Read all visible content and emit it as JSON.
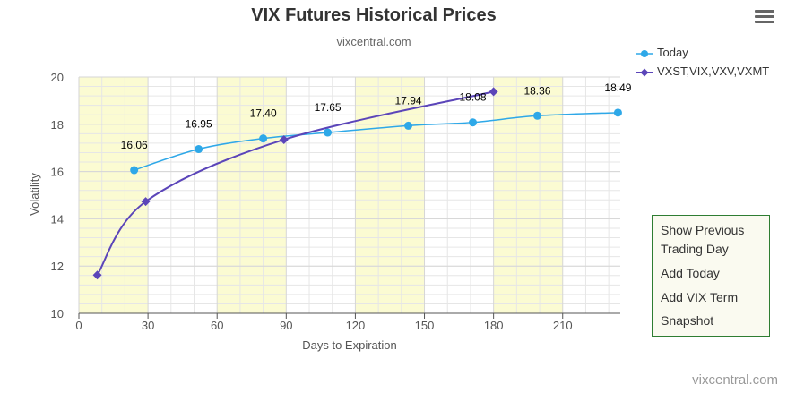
{
  "chart_data": {
    "type": "line",
    "title": "VIX Futures Historical Prices",
    "subtitle": "vixcentral.com",
    "xlabel": "Days to Expiration",
    "ylabel": "Volatility",
    "xlim": [
      0,
      235
    ],
    "ylim": [
      10,
      20
    ],
    "x_ticks": [
      0,
      30,
      60,
      90,
      120,
      150,
      180,
      210
    ],
    "y_ticks": [
      10,
      12,
      14,
      16,
      18,
      20
    ],
    "grid": true,
    "legend_position": "top-right",
    "bands": [
      [
        0,
        30
      ],
      [
        60,
        90
      ],
      [
        120,
        150
      ],
      [
        180,
        210
      ]
    ],
    "series": [
      {
        "name": "Today",
        "color": "#2ea8e8",
        "marker": "circle",
        "points": [
          {
            "x": 24,
            "y": 16.06,
            "label": "16.06"
          },
          {
            "x": 52,
            "y": 16.95,
            "label": "16.95"
          },
          {
            "x": 80,
            "y": 17.4,
            "label": "17.40"
          },
          {
            "x": 108,
            "y": 17.65,
            "label": "17.65"
          },
          {
            "x": 143,
            "y": 17.94,
            "label": "17.94"
          },
          {
            "x": 171,
            "y": 18.08,
            "label": "18.08"
          },
          {
            "x": 199,
            "y": 18.36,
            "label": "18.36"
          },
          {
            "x": 234,
            "y": 18.49,
            "label": "18.49"
          }
        ]
      },
      {
        "name": "VXST,VIX,VXV,VXMT",
        "color": "#5b45b9",
        "marker": "diamond",
        "points": [
          {
            "x": 8,
            "y": 11.62
          },
          {
            "x": 29,
            "y": 14.73
          },
          {
            "x": 89,
            "y": 17.35
          },
          {
            "x": 180,
            "y": 19.38
          }
        ]
      }
    ]
  },
  "controls": {
    "show_previous": "Show Previous Trading Day",
    "add_today": "Add Today",
    "add_vix_term": "Add VIX Term",
    "snapshot": "Snapshot"
  },
  "credit": "vixcentral.com",
  "icons": {
    "menu": "hamburger-menu-icon"
  }
}
